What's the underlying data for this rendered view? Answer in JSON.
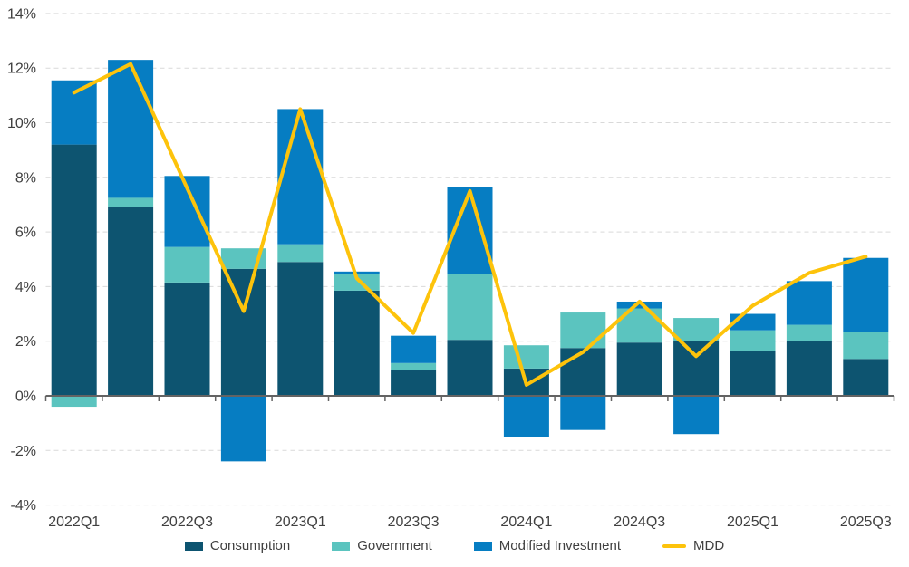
{
  "chart_data": {
    "type": "bar",
    "stacked": true,
    "title": "",
    "xlabel": "",
    "ylabel": "",
    "categories": [
      "2022Q1",
      "2022Q2",
      "2022Q3",
      "2022Q4",
      "2023Q1",
      "2023Q2",
      "2023Q3",
      "2023Q4",
      "2024Q1",
      "2024Q2",
      "2024Q3",
      "2024Q4",
      "2025Q1",
      "2025Q2",
      "2025Q3"
    ],
    "series": [
      {
        "name": "Consumption",
        "color": "#0d5470",
        "values": [
          9.2,
          6.9,
          4.15,
          4.65,
          4.9,
          3.85,
          0.95,
          2.05,
          1.0,
          1.75,
          1.95,
          2.0,
          1.65,
          2.0,
          1.35
        ]
      },
      {
        "name": "Government",
        "color": "#5bc4bf",
        "values": [
          -0.4,
          0.35,
          1.3,
          0.75,
          0.65,
          0.6,
          0.25,
          2.4,
          0.85,
          1.3,
          1.25,
          0.85,
          0.75,
          0.6,
          1.0
        ]
      },
      {
        "name": "Modified Investment",
        "color": "#067dc2",
        "values": [
          2.35,
          5.05,
          2.6,
          -2.4,
          4.95,
          0.1,
          1.0,
          3.2,
          -1.5,
          -1.25,
          0.25,
          -1.4,
          0.6,
          1.6,
          2.7
        ]
      }
    ],
    "line_series": {
      "name": "MDD",
      "color": "#fdc30b",
      "values": [
        11.1,
        12.15,
        7.6,
        3.1,
        10.5,
        4.3,
        2.3,
        7.5,
        0.4,
        1.6,
        3.45,
        1.45,
        3.3,
        4.5,
        5.1
      ]
    },
    "ylim": [
      -4,
      14
    ],
    "yticks": [
      14,
      12,
      10,
      8,
      6,
      4,
      2,
      0,
      -2,
      -4
    ],
    "ytick_labels": [
      "14%",
      "12%",
      "10%",
      "8%",
      "6%",
      "4%",
      "2%",
      "0%",
      "-2%",
      "-4%"
    ],
    "xtick_labels": [
      "2022Q1",
      "2022Q3",
      "2023Q1",
      "2023Q3",
      "2024Q1",
      "2024Q3",
      "2025Q1",
      "2025Q3"
    ],
    "xtick_every": 2,
    "grid": "horizontal-dashed",
    "legend_position": "bottom",
    "colors": {
      "axis_text": "#404040",
      "gridline": "#d9d9d9",
      "axis_line": "#636363",
      "background": "#ffffff"
    }
  }
}
